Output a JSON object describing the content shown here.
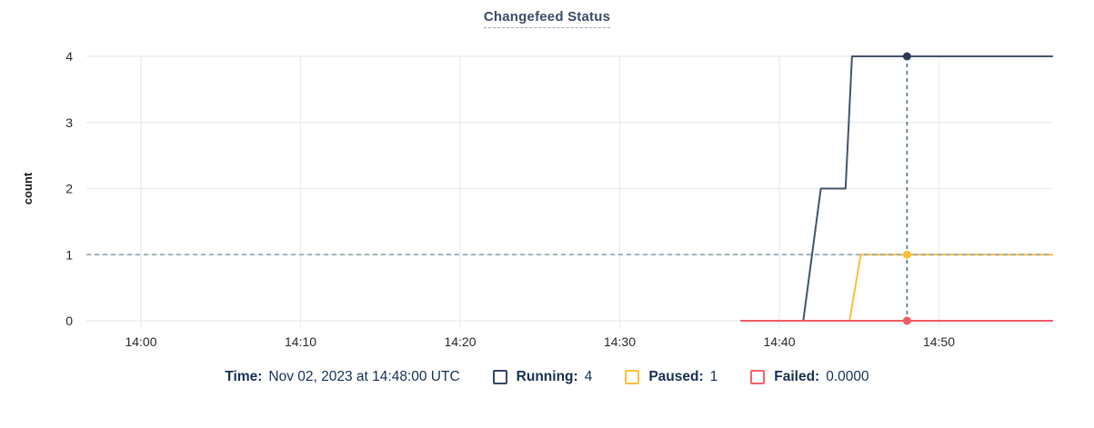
{
  "title": "Changefeed Status",
  "chart_data": {
    "type": "line",
    "title": "Changefeed Status",
    "xlabel": "",
    "ylabel": "count",
    "ylim": [
      0,
      4
    ],
    "yticks": [
      0,
      1,
      2,
      3,
      4
    ],
    "x_unit": "minutes after 14:00",
    "xlim_minutes": [
      -3.4,
      57.1
    ],
    "xticks": [
      {
        "min": 0,
        "label": "14:00"
      },
      {
        "min": 10,
        "label": "14:10"
      },
      {
        "min": 20,
        "label": "14:20"
      },
      {
        "min": 30,
        "label": "14:30"
      },
      {
        "min": 40,
        "label": "14:40"
      },
      {
        "min": 50,
        "label": "14:50"
      }
    ],
    "grid": true,
    "legend_position": "bottom",
    "series": [
      {
        "name": "Running",
        "color": "#43536d",
        "points": [
          [
            37.6,
            0
          ],
          [
            41.5,
            0
          ],
          [
            42.6,
            2
          ],
          [
            44.15,
            2
          ],
          [
            44.55,
            4
          ],
          [
            57.1,
            4
          ]
        ]
      },
      {
        "name": "Paused",
        "color": "#fdbd3a",
        "points": [
          [
            37.6,
            0
          ],
          [
            44.4,
            0
          ],
          [
            45.1,
            1
          ],
          [
            57.1,
            1
          ]
        ]
      },
      {
        "name": "Failed",
        "color": "#ee5a63",
        "points": [
          [
            37.6,
            0
          ],
          [
            57.1,
            0
          ]
        ]
      }
    ],
    "hover_value_line": 1,
    "crosshair": {
      "x_min": 48,
      "time": "14:48:00 UTC",
      "dots": [
        {
          "series": "Running",
          "value": 4,
          "color": "#2b3a52"
        },
        {
          "series": "Paused",
          "value": 1,
          "color": "#fdbd3a"
        },
        {
          "series": "Failed",
          "value": 0,
          "color": "#ee5a63"
        }
      ]
    }
  },
  "legend": {
    "time_label": "Time:",
    "time_value": "Nov 02, 2023 at 14:48:00 UTC",
    "items": [
      {
        "label": "Running:",
        "value": "4",
        "color": "#344764"
      },
      {
        "label": "Paused:",
        "value": "1",
        "color": "#fcbf3e"
      },
      {
        "label": "Failed:",
        "value": "0.0000",
        "color": "#f2626b"
      }
    ]
  },
  "colors": {
    "grid": "#ededef",
    "tick_text": "#25282d",
    "axis_label_text": "#17191d",
    "crosshair_vertical": "#49707c",
    "hover_value_line": "#8aa0a8",
    "legend_text": "#173052",
    "title_text": "#3a4c66"
  }
}
